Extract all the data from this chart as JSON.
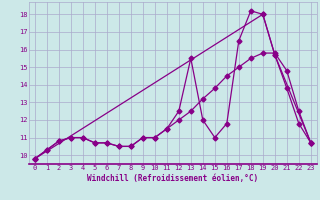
{
  "background_color": "#cce8e8",
  "grid_color": "#aaaacc",
  "line_color": "#880088",
  "xlabel": "Windchill (Refroidissement éolien,°C)",
  "xlim": [
    -0.5,
    23.5
  ],
  "ylim": [
    9.5,
    18.7
  ],
  "xticks": [
    0,
    1,
    2,
    3,
    4,
    5,
    6,
    7,
    8,
    9,
    10,
    11,
    12,
    13,
    14,
    15,
    16,
    17,
    18,
    19,
    20,
    21,
    22,
    23
  ],
  "yticks": [
    10,
    11,
    12,
    13,
    14,
    15,
    16,
    17,
    18
  ],
  "series1_x": [
    0,
    1,
    2,
    3,
    4,
    5,
    6,
    7,
    8,
    9,
    10,
    11,
    12,
    13,
    14,
    15,
    16,
    17,
    18,
    19,
    20,
    21,
    22,
    23
  ],
  "series1_y": [
    9.8,
    10.3,
    10.8,
    11.0,
    11.0,
    10.7,
    10.7,
    10.5,
    10.5,
    11.0,
    11.0,
    11.5,
    12.5,
    15.5,
    12.0,
    11.0,
    11.8,
    16.5,
    18.2,
    18.0,
    15.7,
    13.8,
    11.8,
    10.7
  ],
  "series2_x": [
    0,
    1,
    2,
    3,
    4,
    5,
    6,
    7,
    8,
    9,
    10,
    11,
    12,
    13,
    14,
    15,
    16,
    17,
    18,
    19,
    20,
    21,
    22,
    23
  ],
  "series2_y": [
    9.8,
    10.3,
    10.8,
    11.0,
    11.0,
    10.7,
    10.7,
    10.5,
    10.5,
    11.0,
    11.0,
    11.5,
    12.0,
    12.5,
    13.2,
    13.8,
    14.5,
    15.0,
    15.5,
    15.8,
    15.8,
    14.8,
    12.5,
    10.7
  ],
  "series3_x": [
    0,
    19,
    20,
    23
  ],
  "series3_y": [
    9.8,
    18.0,
    15.7,
    10.7
  ],
  "marker": "D",
  "markersize": 2.5,
  "linewidth": 0.9,
  "tick_fontsize": 5.0,
  "xlabel_fontsize": 5.5
}
